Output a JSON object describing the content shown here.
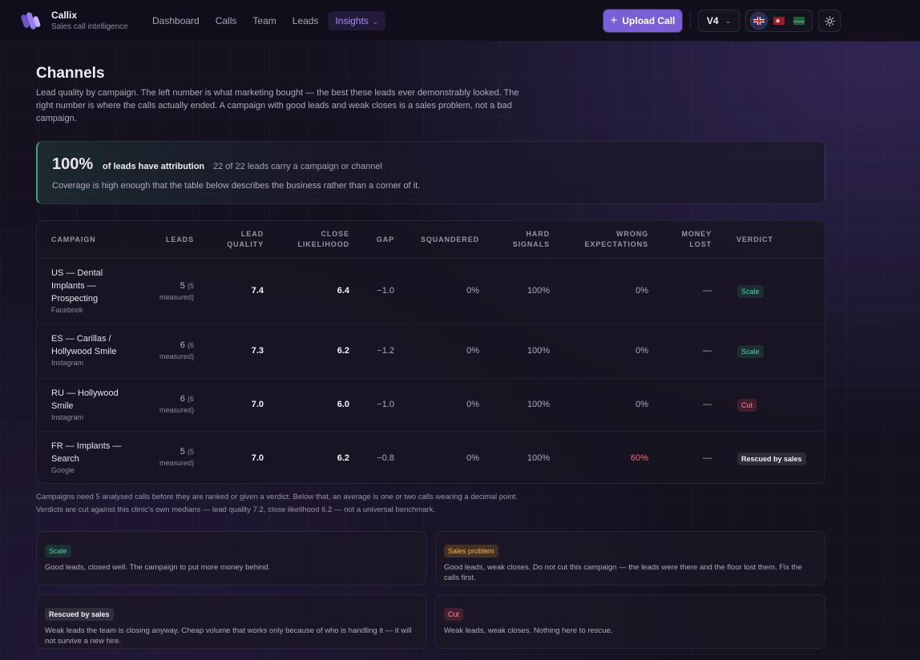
{
  "app": {
    "name": "Callix",
    "tagline": "Sales call intelligence"
  },
  "nav": {
    "items": [
      {
        "label": "Dashboard"
      },
      {
        "label": "Calls"
      },
      {
        "label": "Team"
      },
      {
        "label": "Leads"
      },
      {
        "label": "Insights",
        "active": true
      }
    ],
    "upload_label": "Upload Call",
    "version_label": "V4",
    "languages": [
      "en",
      "tr",
      "sa"
    ],
    "accent_color": "#7b5fd7"
  },
  "page": {
    "title": "Channels",
    "description": "Lead quality by campaign. The left number is what marketing bought — the best these leads ever demonstrably looked. The right number is where the calls actually ended. A campaign with good leads and weak closes is a sales problem, not a bad campaign."
  },
  "coverage": {
    "percent": "100%",
    "label": "of leads have attribution",
    "count": "22 of 22 leads carry a campaign or channel",
    "note": "Coverage is high enough that the table below describes the business rather than a corner of it."
  },
  "table": {
    "headers": {
      "campaign": "CAMPAIGN",
      "leads": "LEADS",
      "lead_quality_1": "LEAD",
      "lead_quality_2": "QUALITY",
      "close_1": "CLOSE",
      "close_2": "LIKELIHOOD",
      "gap": "GAP",
      "squandered": "SQUANDERED",
      "hard_1": "HARD",
      "hard_2": "SIGNALS",
      "wrong_1": "WRONG",
      "wrong_2": "EXPECTATIONS",
      "money_1": "MONEY",
      "money_2": "LOST",
      "verdict": "VERDICT"
    },
    "rows": [
      {
        "campaign_lines": [
          "US — Dental",
          "Implants —",
          "Prospecting"
        ],
        "source": "Facebook",
        "leads": "5",
        "measured_a": "(5",
        "measured_b": "measured)",
        "lead_quality": "7.4",
        "close_likelihood": "6.4",
        "gap": "−1.0",
        "squandered": "0%",
        "hard_signals": "100%",
        "wrong_expectations": "0%",
        "money_lost": "—",
        "verdict": "Scale"
      },
      {
        "campaign_lines": [
          "ES — Carillas /",
          "Hollywood Smile"
        ],
        "source": "Instagram",
        "leads": "6",
        "measured_a": "(6",
        "measured_b": "measured)",
        "lead_quality": "7.3",
        "close_likelihood": "6.2",
        "gap": "−1.2",
        "squandered": "0%",
        "hard_signals": "100%",
        "wrong_expectations": "0%",
        "money_lost": "—",
        "verdict": "Scale"
      },
      {
        "campaign_lines": [
          "RU — Hollywood",
          "Smile"
        ],
        "source": "Instagram",
        "leads": "6",
        "measured_a": "(6",
        "measured_b": "measured)",
        "lead_quality": "7.0",
        "close_likelihood": "6.0",
        "gap": "−1.0",
        "squandered": "0%",
        "hard_signals": "100%",
        "wrong_expectations": "0%",
        "money_lost": "—",
        "verdict": "Cut"
      },
      {
        "campaign_lines": [
          "FR — Implants —",
          "Search"
        ],
        "source": "Google",
        "leads": "5",
        "measured_a": "(5",
        "measured_b": "measured)",
        "lead_quality": "7.0",
        "close_likelihood": "6.2",
        "gap": "−0.8",
        "squandered": "0%",
        "hard_signals": "100%",
        "wrong_expectations": "60%",
        "money_lost": "—",
        "verdict": "Rescued by sales"
      }
    ]
  },
  "footnotes": {
    "line1": "Campaigns need 5 analysed calls before they are ranked or given a verdict. Below that, an average is one or two calls wearing a decimal point.",
    "line2": "Verdicts are cut against this clinic's own medians — lead quality 7.2, close likelihood 6.2 — not a universal benchmark."
  },
  "legend": {
    "scale": {
      "badge": "Scale",
      "desc": "Good leads, closed well. The campaign to put more money behind."
    },
    "sales_problem": {
      "badge": "Sales problem",
      "desc": "Good leads, weak closes. Do not cut this campaign — the leads were there and the floor lost them. Fix the calls first."
    },
    "rescued": {
      "badge": "Rescued by sales",
      "desc": "Weak leads the team is closing anyway. Cheap volume that works only because of who is handling it — it will not survive a new hire."
    },
    "cut": {
      "badge": "Cut",
      "desc": "Weak leads, weak closes. Nothing here to rescue."
    }
  }
}
